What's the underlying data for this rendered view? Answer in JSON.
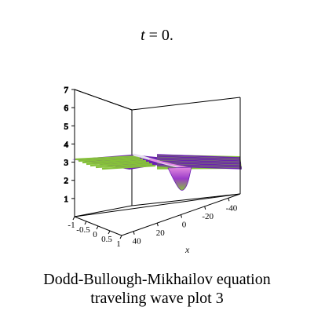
{
  "chart_data": {
    "type": "surface3d",
    "time_label": {
      "variable": "t",
      "operator": " = ",
      "value": "0."
    },
    "caption_lines": [
      "Dodd-Bullough-Mikhailov equation",
      "traveling wave plot 3"
    ],
    "z_axis": {
      "ticks": [
        "1",
        "2",
        "3",
        "4",
        "5",
        "6",
        "7"
      ],
      "range": [
        0,
        7
      ]
    },
    "y_axis": {
      "ticks": [
        "-1",
        "-0.5",
        "0",
        "0.5",
        "1"
      ],
      "range": [
        -1,
        1
      ]
    },
    "x_axis": {
      "label": "x",
      "ticks": [
        "40",
        "20",
        "0",
        "-20",
        "-40"
      ],
      "range": [
        -50,
        50
      ]
    },
    "surface": {
      "baseline_z": 3,
      "dip_min_z": 1.5,
      "dip_center_x": 0,
      "colors": {
        "primary": "#6a1fb0",
        "secondary": "#86c13a",
        "highlight": "#e48ae0"
      }
    }
  }
}
